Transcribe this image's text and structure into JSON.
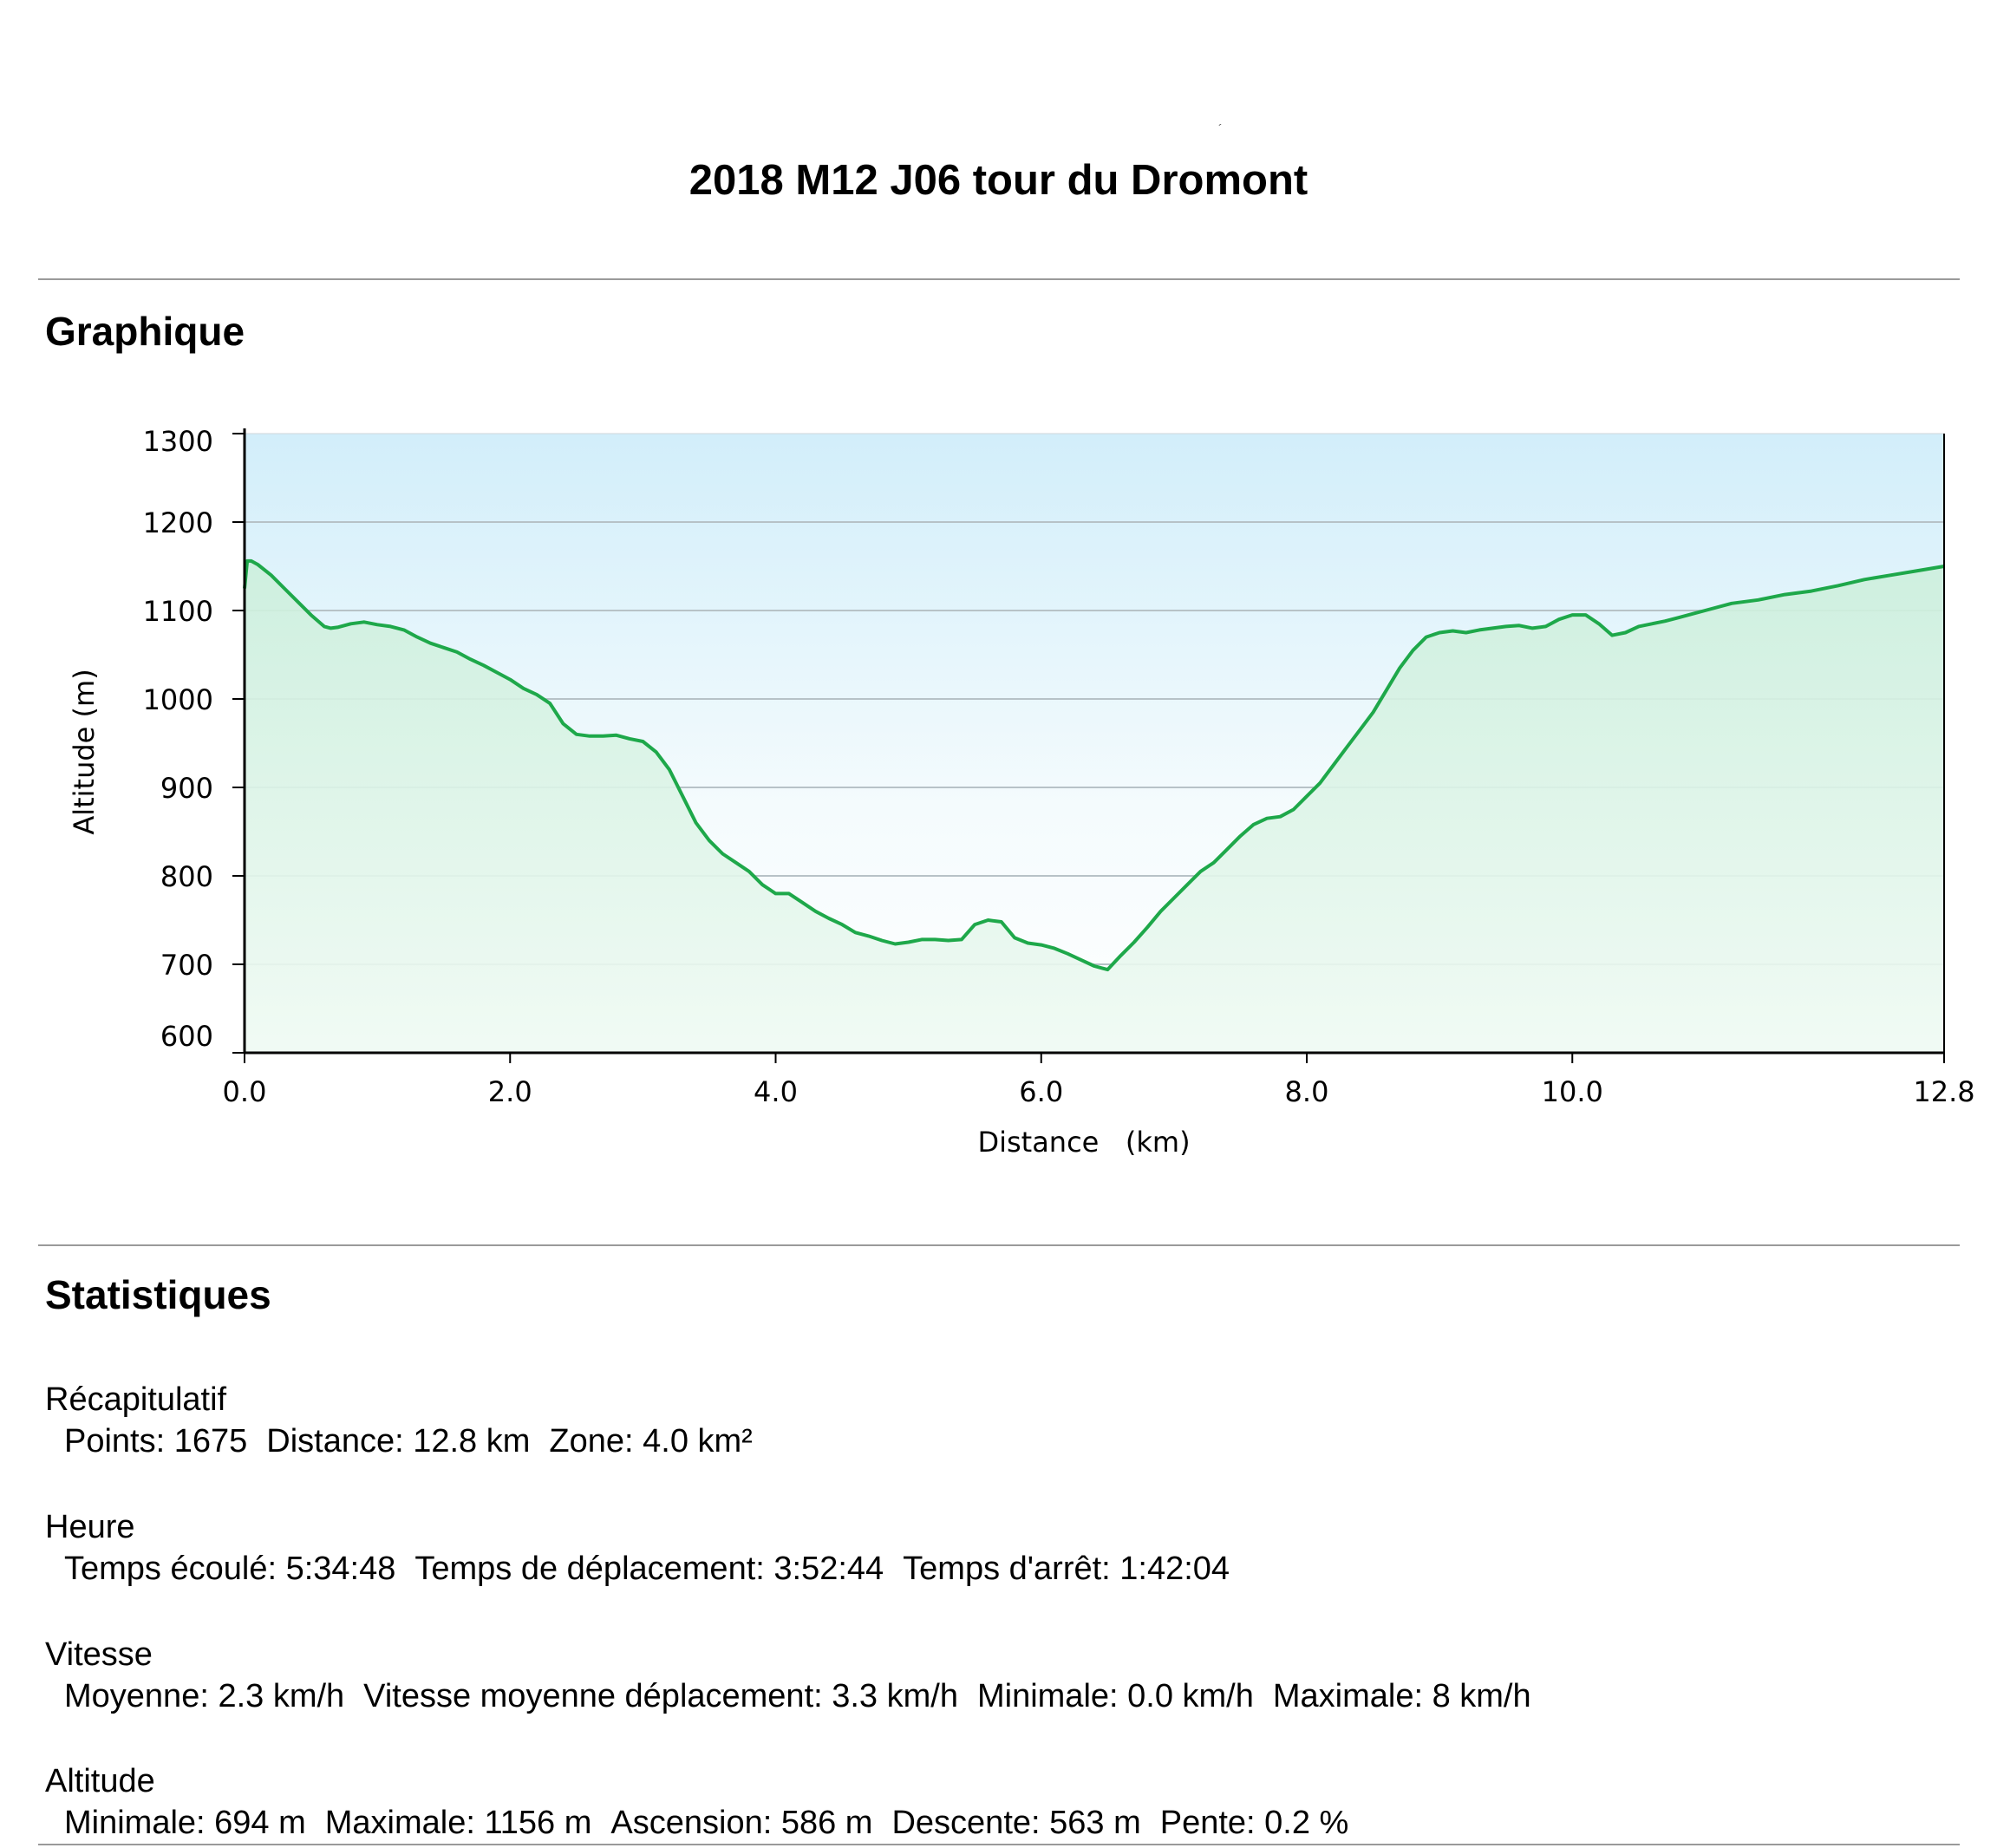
{
  "page": {
    "mark": "´",
    "title": "2018 M12 J06 tour du Dromont",
    "graph_heading": "Graphique",
    "stats_heading": "Statistiques"
  },
  "chart_data": {
    "type": "area",
    "title": "",
    "xlabel": "Distance   (km)",
    "ylabel": "Altitude (m)",
    "xlim": [
      0,
      12.8
    ],
    "ylim": [
      600,
      1300
    ],
    "x_ticks": [
      "0.0",
      "2.0",
      "4.0",
      "6.0",
      "8.0",
      "10.0",
      "12.8"
    ],
    "y_ticks": [
      "600",
      "700",
      "800",
      "900",
      "1000",
      "1100",
      "1200",
      "1300"
    ],
    "grid": true,
    "line_color": "#1ea84a",
    "series": [
      {
        "x": [
          0,
          0.02,
          0.05,
          0.1,
          0.2,
          0.3,
          0.4,
          0.5,
          0.6,
          0.65,
          0.7,
          0.8,
          0.9,
          1.0,
          1.1,
          1.2,
          1.3,
          1.4,
          1.5,
          1.6,
          1.7,
          1.8,
          1.9,
          2.0,
          2.1,
          2.2,
          2.3,
          2.4,
          2.5,
          2.6,
          2.7,
          2.8,
          2.9,
          3.0,
          3.1,
          3.2,
          3.3,
          3.4,
          3.5,
          3.6,
          3.7,
          3.8,
          3.9,
          4.0,
          4.1,
          4.2,
          4.3,
          4.4,
          4.5,
          4.6,
          4.7,
          4.8,
          4.9,
          5.0,
          5.1,
          5.2,
          5.3,
          5.4,
          5.5,
          5.6,
          5.7,
          5.8,
          5.9,
          6.0,
          6.1,
          6.2,
          6.3,
          6.4,
          6.5,
          6.6,
          6.7,
          6.8,
          6.9,
          7.0,
          7.1,
          7.2,
          7.3,
          7.4,
          7.5,
          7.6,
          7.7,
          7.8,
          7.9,
          8.0,
          8.1,
          8.2,
          8.3,
          8.4,
          8.5,
          8.6,
          8.7,
          8.8,
          8.9,
          9.0,
          9.1,
          9.2,
          9.3,
          9.4,
          9.5,
          9.6,
          9.7,
          9.8,
          9.9,
          10.0,
          10.1,
          10.2,
          10.3,
          10.4,
          10.5,
          10.6,
          10.7,
          10.8,
          10.9,
          11.0,
          11.2,
          11.4,
          11.6,
          11.8,
          12.0,
          12.2,
          12.4,
          12.6,
          12.8
        ],
        "y": [
          1125,
          1156,
          1156,
          1152,
          1140,
          1125,
          1110,
          1095,
          1082,
          1080,
          1081,
          1085,
          1087,
          1084,
          1082,
          1078,
          1070,
          1063,
          1058,
          1053,
          1045,
          1038,
          1030,
          1022,
          1012,
          1005,
          995,
          972,
          960,
          958,
          958,
          959,
          955,
          952,
          940,
          920,
          890,
          860,
          840,
          825,
          815,
          805,
          790,
          780,
          780,
          770,
          760,
          752,
          745,
          736,
          732,
          727,
          723,
          725,
          728,
          728,
          727,
          728,
          745,
          750,
          748,
          730,
          724,
          722,
          718,
          712,
          705,
          698,
          694,
          710,
          725,
          742,
          760,
          775,
          790,
          805,
          815,
          830,
          845,
          858,
          865,
          867,
          875,
          890,
          905,
          925,
          945,
          965,
          985,
          1010,
          1035,
          1055,
          1070,
          1075,
          1077,
          1075,
          1078,
          1080,
          1082,
          1083,
          1080,
          1082,
          1090,
          1095,
          1095,
          1085,
          1072,
          1075,
          1082,
          1085,
          1088,
          1092,
          1096,
          1100,
          1108,
          1112,
          1118,
          1122,
          1128,
          1135,
          1140,
          1145,
          1150
        ]
      }
    ]
  },
  "stats": {
    "groups": [
      {
        "heading": "Récapitulatif",
        "items": [
          "Points: 1675",
          "Distance: 12.8 km",
          "Zone: 4.0 km²"
        ]
      },
      {
        "heading": "Heure",
        "items": [
          "Temps écoulé: 5:34:48",
          "Temps de déplacement: 3:52:44",
          "Temps d'arrêt: 1:42:04"
        ]
      },
      {
        "heading": "Vitesse",
        "items": [
          "Moyenne: 2.3 km/h",
          "Vitesse moyenne déplacement: 3.3 km/h",
          "Minimale: 0.0 km/h",
          "Maximale: 8 km/h"
        ]
      },
      {
        "heading": "Altitude",
        "items": [
          "Minimale: 694 m",
          "Maximale: 1156 m",
          "Ascension: 586 m",
          "Descente: 563 m",
          "Pente: 0.2 %"
        ]
      }
    ]
  }
}
